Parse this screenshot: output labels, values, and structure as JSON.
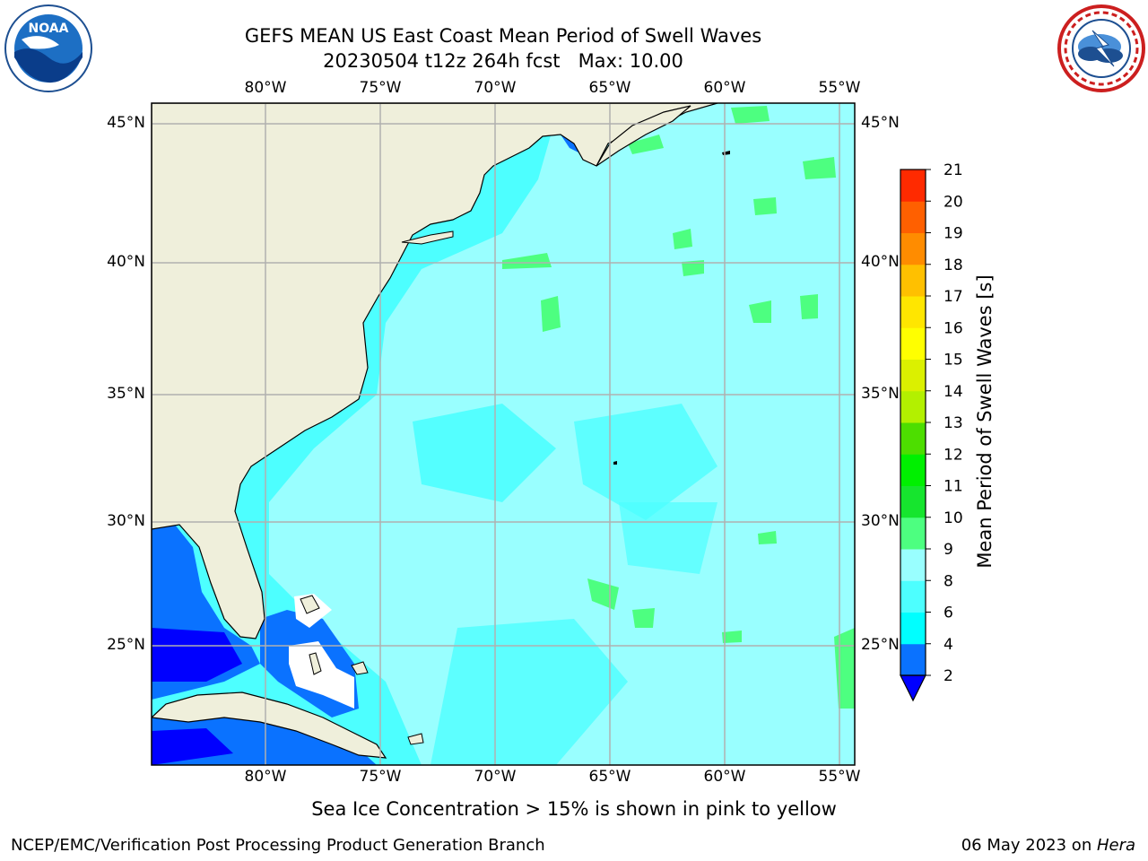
{
  "title": {
    "line1": "GEFS MEAN US East Coast Mean Period of Swell Waves",
    "line2": "20230504 t12z 264h fcst   Max: 10.00"
  },
  "map": {
    "lon_ticks": [
      "80°W",
      "75°W",
      "70°W",
      "65°W",
      "60°W",
      "55°W"
    ],
    "lat_ticks": [
      "45°N",
      "40°N",
      "35°N",
      "30°N",
      "25°N"
    ]
  },
  "colorbar": {
    "label": "Mean Period of Swell Waves [s]",
    "levels": [
      "2",
      "4",
      "6",
      "8",
      "9",
      "10",
      "11",
      "12",
      "13",
      "14",
      "15",
      "16",
      "17",
      "18",
      "19",
      "20",
      "21"
    ],
    "colors": [
      "#0a72ff",
      "#00ffff",
      "#4dffff",
      "#99ffff",
      "#4dff80",
      "#16e52e",
      "#00f000",
      "#4dde00",
      "#b3f000",
      "#dbf000",
      "#ffff00",
      "#ffe600",
      "#ffc000",
      "#ff8c00",
      "#ff6000",
      "#ff2a00",
      "#ff0000"
    ],
    "under_color": "#0000ff"
  },
  "logos": {
    "left": {
      "name": "noaa-logo",
      "text": "NOAA"
    },
    "right": {
      "name": "nws-logo"
    }
  },
  "footer": {
    "note": "Sea Ice Concentration > 15% is shown in pink to yellow",
    "credit": "NCEP/EMC/Verification Post Processing Product Generation Branch",
    "date": "06 May 2023 on ",
    "machine": "Hera"
  }
}
